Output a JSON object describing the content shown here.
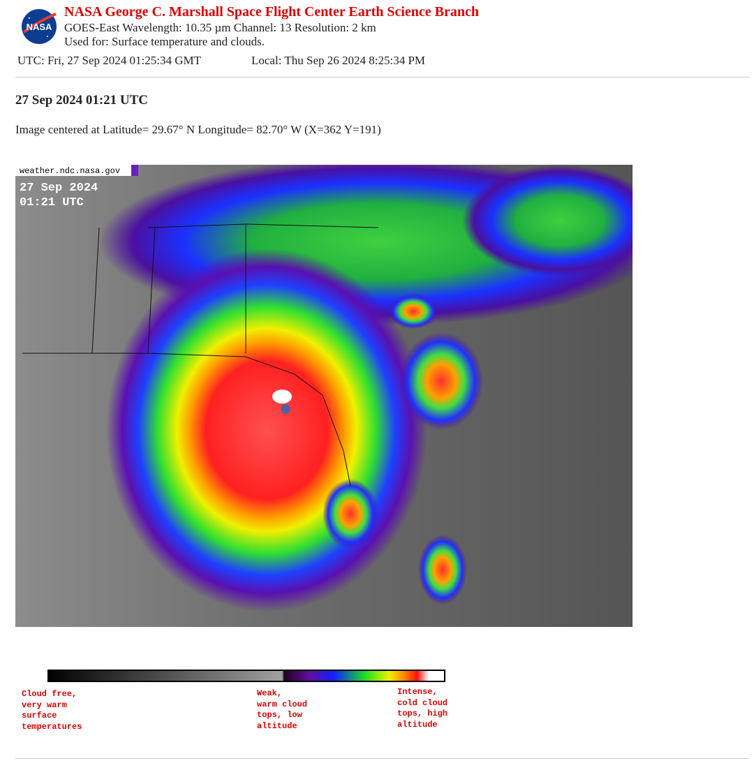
{
  "header": {
    "logo_text": "NASA",
    "title": "NASA George C. Marshall Space Flight Center Earth Science Branch",
    "subtitle": "GOES-East Wavelength: 10.35 µm Channel: 13 Resolution: 2 km",
    "usage": "Used for: Surface temperature and clouds.",
    "utc": "UTC: Fri, 27 Sep 2024 01:25:34 GMT",
    "local": "Local: Thu Sep 26 2024 8:25:34 PM"
  },
  "content": {
    "heading": "27 Sep 2024 01:21 UTC",
    "center_info": "Image centered at Latitude= 29.67° N Longitude= 82.70° W (X=362 Y=191)"
  },
  "image": {
    "source": "weather.ndc.nasa.gov",
    "date": "27 Sep 2024",
    "time": "01:21 UTC"
  },
  "legend": {
    "labels": [
      {
        "lines": [
          "Cloud free,",
          "very warm",
          "surface",
          "temperatures"
        ]
      },
      {
        "lines": [
          "Weak,",
          "warm cloud",
          "tops, low",
          "altitude"
        ]
      },
      {
        "lines": [
          "Intense,",
          "cold cloud",
          "tops, high",
          "altitude"
        ]
      }
    ]
  }
}
